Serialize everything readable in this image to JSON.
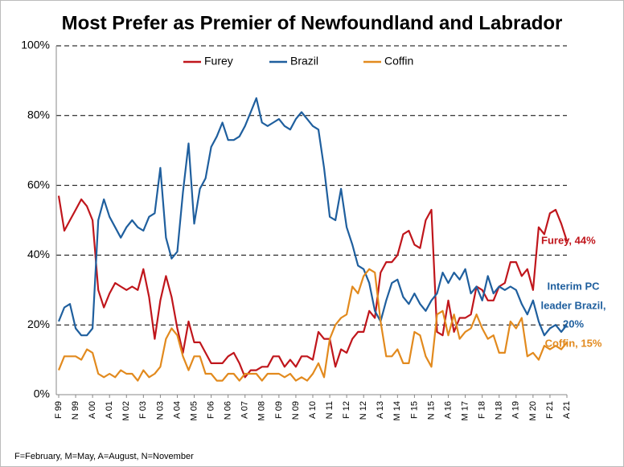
{
  "chart_data": {
    "type": "line",
    "title": "Most Prefer as Premier of Newfoundland and Labrador",
    "footnote": "F=February, M=May, A=August, N=November",
    "categories": [
      "F 99",
      null,
      null,
      "N 99",
      null,
      null,
      "A 00",
      null,
      null,
      "A 01",
      null,
      null,
      "M 02",
      null,
      null,
      "F 03",
      null,
      null,
      "N 03",
      null,
      null,
      "A 04",
      null,
      null,
      "M 05",
      null,
      null,
      "F 06",
      null,
      null,
      "N 06",
      null,
      null,
      "A 07",
      null,
      null,
      "M 08",
      null,
      null,
      "F 09",
      null,
      null,
      "N 09",
      null,
      null,
      "A 10",
      null,
      null,
      "N 11",
      null,
      null,
      "F 12",
      null,
      null,
      "N 12",
      null,
      null,
      "A 13",
      null,
      null,
      "M 14",
      null,
      null,
      "F 15",
      null,
      null,
      "N 15",
      null,
      null,
      "A 16",
      null,
      null,
      "M 17",
      null,
      null,
      "F 18",
      null,
      null,
      "N 18",
      null,
      null,
      "A 19",
      null,
      null,
      "M 20",
      null,
      null,
      "F 21",
      null,
      null,
      "A 21"
    ],
    "series": [
      {
        "name": "Furey",
        "color": "#c0161c",
        "values": [
          57,
          47,
          50,
          53,
          56,
          54,
          50,
          30,
          25,
          29,
          32,
          31,
          30,
          31,
          30,
          36,
          28,
          16,
          27,
          34,
          28,
          19,
          12,
          21,
          15,
          15,
          12,
          9,
          9,
          9,
          11,
          12,
          9,
          5,
          7,
          7,
          8,
          8,
          11,
          11,
          8,
          10,
          8,
          11,
          11,
          10,
          18,
          16,
          16,
          8,
          13,
          12,
          16,
          18,
          18,
          24,
          22,
          35,
          38,
          38,
          40,
          46,
          47,
          43,
          42,
          50,
          53,
          18,
          17,
          27,
          18,
          22,
          22,
          23,
          31,
          30,
          27,
          27,
          31,
          32,
          38,
          38,
          34,
          36,
          30,
          48,
          46,
          52,
          53,
          49,
          44
        ]
      },
      {
        "name": "Brazil",
        "color": "#1f5f9e",
        "values": [
          21,
          25,
          26,
          19,
          17,
          17,
          19,
          50,
          56,
          51,
          48,
          45,
          48,
          50,
          48,
          47,
          51,
          52,
          65,
          45,
          39,
          41,
          58,
          72,
          49,
          59,
          62,
          71,
          74,
          78,
          73,
          73,
          74,
          77,
          81,
          85,
          78,
          77,
          78,
          79,
          77,
          76,
          79,
          81,
          79,
          77,
          76,
          65,
          51,
          50,
          59,
          48,
          43,
          37,
          36,
          32,
          24,
          21,
          27,
          32,
          33,
          28,
          26,
          29,
          26,
          24,
          27,
          29,
          35,
          32,
          35,
          33,
          36,
          29,
          31,
          27,
          34,
          29,
          31,
          30,
          31,
          30,
          26,
          23,
          27,
          21,
          17,
          19,
          20,
          18,
          20
        ]
      },
      {
        "name": "Coffin",
        "color": "#e28a1e",
        "values": [
          7,
          11,
          11,
          11,
          10,
          13,
          12,
          6,
          5,
          6,
          5,
          7,
          6,
          6,
          4,
          7,
          5,
          6,
          8,
          16,
          19,
          17,
          11,
          7,
          11,
          11,
          6,
          6,
          4,
          4,
          6,
          6,
          4,
          6,
          6,
          6,
          4,
          6,
          6,
          6,
          5,
          6,
          4,
          5,
          4,
          6,
          9,
          5,
          16,
          20,
          22,
          23,
          31,
          29,
          34,
          36,
          35,
          21,
          11,
          11,
          13,
          9,
          9,
          18,
          17,
          11,
          8,
          23,
          24,
          17,
          23,
          16,
          18,
          19,
          23,
          19,
          16,
          17,
          12,
          12,
          21,
          19,
          22,
          11,
          12,
          10,
          14,
          13,
          14,
          13,
          15
        ]
      }
    ],
    "ylim": [
      0,
      100
    ],
    "yticks": [
      {
        "value": 0,
        "label": "0%"
      },
      {
        "value": 20,
        "label": "20%"
      },
      {
        "value": 40,
        "label": "40%"
      },
      {
        "value": 60,
        "label": "60%"
      },
      {
        "value": 80,
        "label": "80%"
      },
      {
        "value": 100,
        "label": "100%"
      }
    ],
    "grid": true,
    "legend": "top",
    "annotations": [
      {
        "lines": [
          "Furey, 44%"
        ],
        "color": "#c0161c"
      },
      {
        "lines": [
          "Interim PC",
          "leader Brazil,",
          "20%"
        ],
        "color": "#1f5f9e"
      },
      {
        "lines": [
          "Coffin, 15%"
        ],
        "color": "#e28a1e"
      }
    ]
  }
}
